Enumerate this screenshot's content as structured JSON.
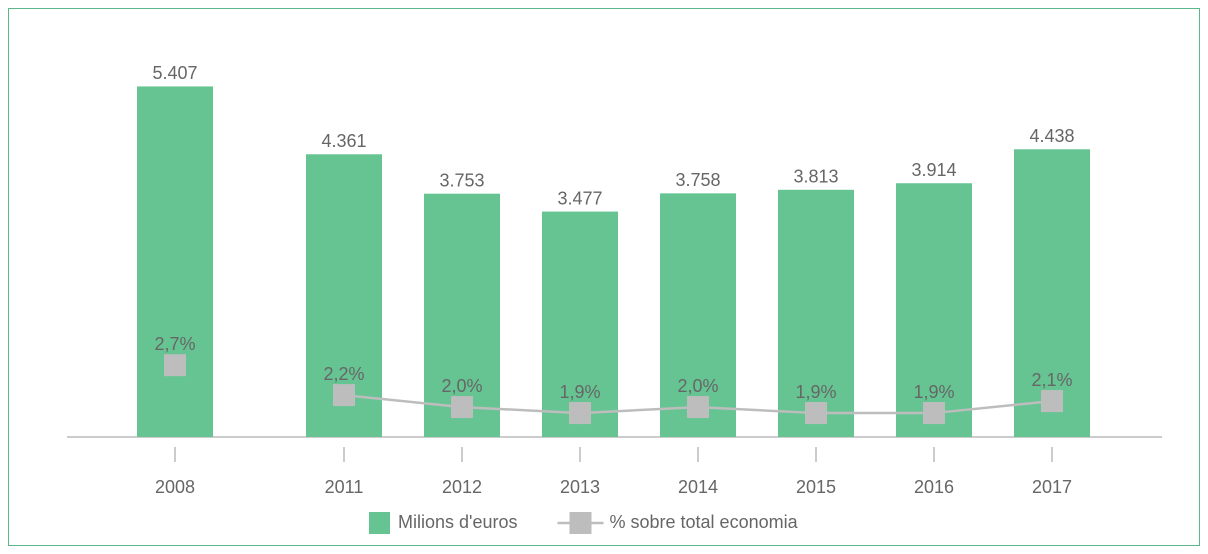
{
  "chart_data": {
    "type": "bar+line",
    "categories": [
      "2008",
      null,
      "2011",
      "2012",
      "2013",
      "2014",
      "2015",
      "2016",
      "2017"
    ],
    "series": [
      {
        "name": "Milions d'euros",
        "type": "bar",
        "color": "#66c493",
        "values": [
          5407,
          null,
          4361,
          3753,
          3477,
          3758,
          3813,
          3914,
          4438
        ],
        "value_labels": [
          "5.407",
          null,
          "4.361",
          "3.753",
          "3.477",
          "3.758",
          "3.813",
          "3.914",
          "4.438"
        ]
      },
      {
        "name": "% sobre total economia",
        "type": "line",
        "axis": "y2",
        "color": "#bdbdbd",
        "values": [
          2.7,
          null,
          2.2,
          2.0,
          1.9,
          2.0,
          1.9,
          1.9,
          2.1
        ],
        "value_labels": [
          "2,7%",
          null,
          "2,2%",
          "2,0%",
          "1,9%",
          "2,0%",
          "1,9%",
          "1,9%",
          "2,1%"
        ]
      }
    ],
    "ylim": [
      0,
      6000
    ],
    "y2lim": [
      1.5,
      8
    ],
    "grid": false
  }
}
